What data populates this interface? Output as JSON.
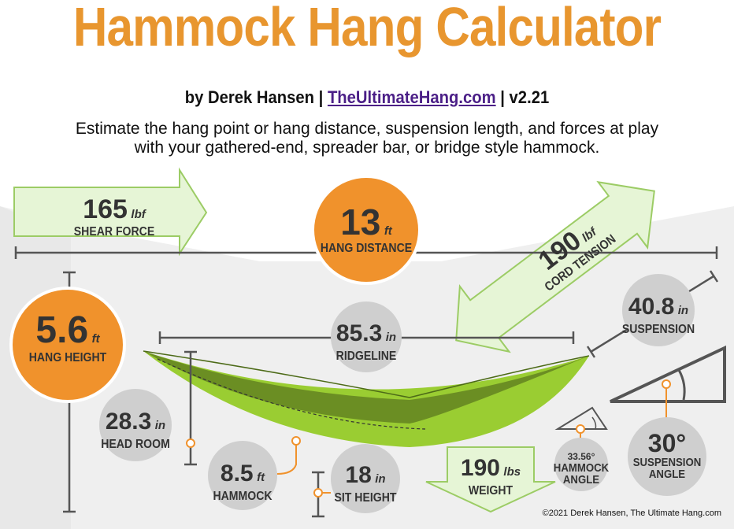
{
  "header": {
    "title": "Hammock Hang Calculator",
    "by_prefix": "by Derek Hansen |",
    "site_link": "TheUltimateHang.com",
    "version": "| v2.21",
    "description_line1": "Estimate the hang point or hang distance, suspension length, and forces at play",
    "description_line2": "with your gathered-end, spreader bar, or bridge style hammock."
  },
  "metrics": {
    "shear_force": {
      "value": "165",
      "unit": "lbf",
      "label": "SHEAR FORCE"
    },
    "hang_distance": {
      "value": "13",
      "unit": "ft",
      "label": "HANG DISTANCE"
    },
    "cord_tension": {
      "value": "190",
      "unit": "lbf",
      "label": "CORD TENSION"
    },
    "hang_height": {
      "value": "5.6",
      "unit": "ft",
      "label": "HANG HEIGHT"
    },
    "ridgeline": {
      "value": "85.3",
      "unit": "in",
      "label": "RIDGELINE"
    },
    "suspension": {
      "value": "40.8",
      "unit": "in",
      "label": "SUSPENSION"
    },
    "head_room": {
      "value": "28.3",
      "unit": "in",
      "label": "HEAD ROOM"
    },
    "hammock": {
      "value": "8.5",
      "unit": "ft",
      "label": "HAMMOCK"
    },
    "sit_height": {
      "value": "18",
      "unit": "in",
      "label": "SIT HEIGHT"
    },
    "weight": {
      "value": "190",
      "unit": "lbs",
      "label": "WEIGHT"
    },
    "hammock_angle": {
      "value": "33.56°",
      "label_line1": "HAMMOCK",
      "label_line2": "ANGLE"
    },
    "suspension_angle": {
      "value": "30°",
      "label_line1": "SUSPENSION",
      "label_line2": "ANGLE"
    }
  },
  "footer": {
    "copyright": "©2021 Derek Hansen, The Ultimate Hang.com"
  },
  "colors": {
    "orange": "#f0922c",
    "grey_circle": "#cfcfcf",
    "arrow_fill": "#e6f5d6",
    "arrow_stroke": "#9ccc65",
    "hammock_green": "#9acd32",
    "hammock_dark": "#6b8e23",
    "background": "#eeeeee"
  }
}
